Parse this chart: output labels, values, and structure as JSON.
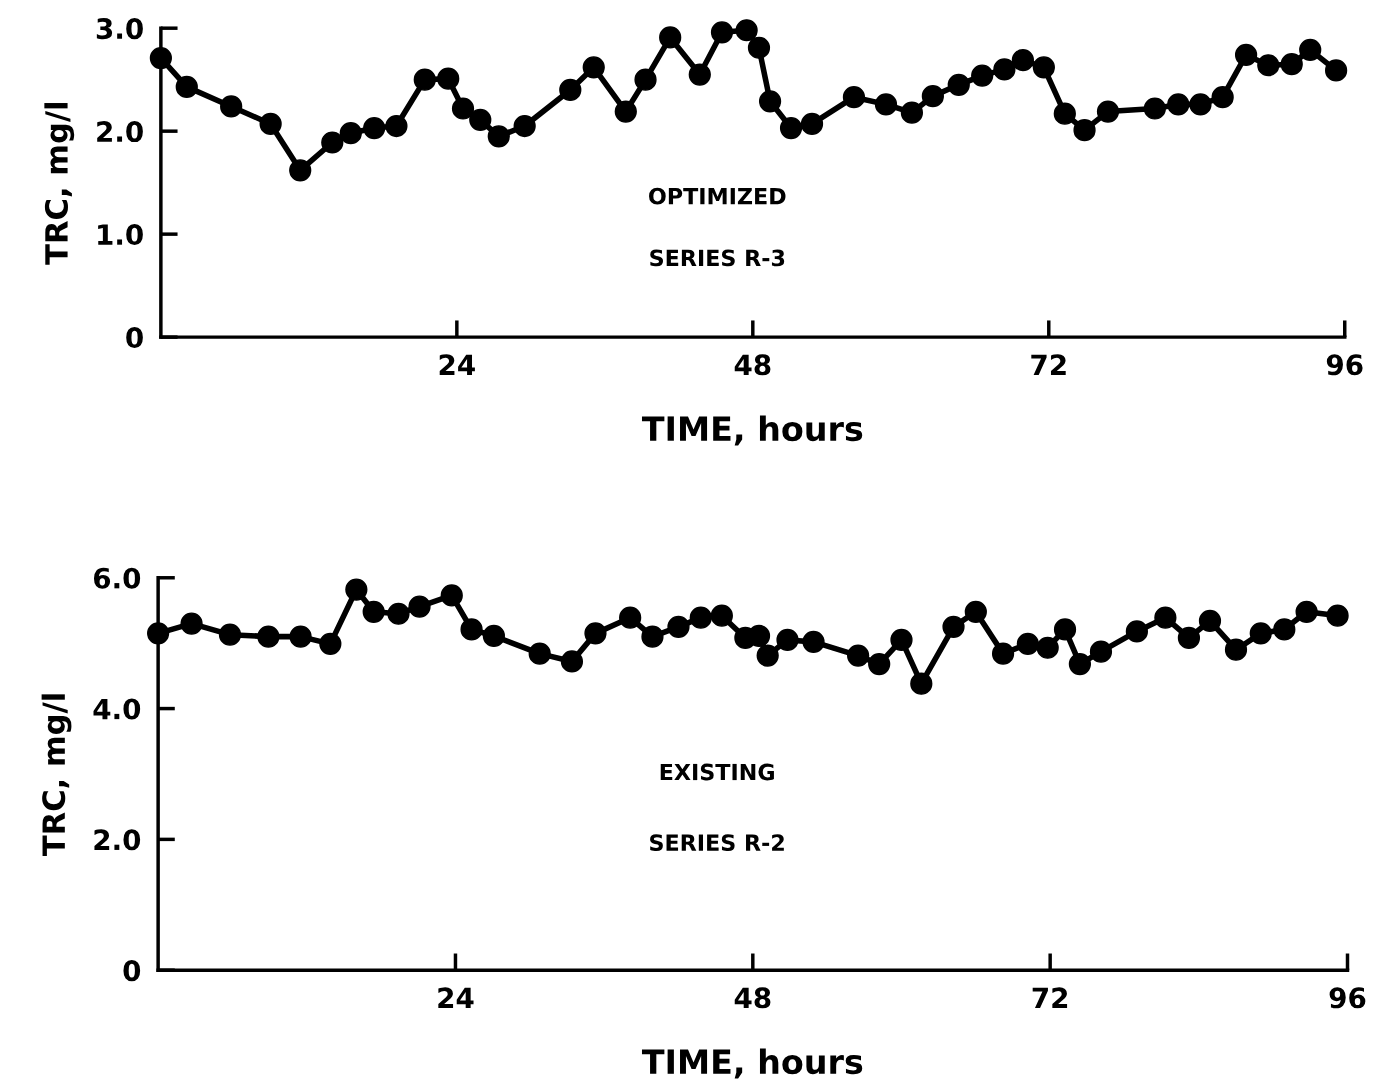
{
  "chart_data": [
    {
      "type": "line",
      "xlabel": "TIME, hours",
      "ylabel": "TRC, mg/l",
      "annotations": [
        "OPTIMIZED",
        "SERIES R-3"
      ],
      "marker": "circle",
      "line_style": "solid",
      "grid": false,
      "legend": false,
      "xlim": [
        0,
        96
      ],
      "ylim": [
        0,
        3
      ],
      "xticks": [
        24,
        48,
        72,
        96
      ],
      "yticks": [
        {
          "value": 0,
          "label": "0"
        },
        {
          "value": 1,
          "label": "1.0"
        },
        {
          "value": 2,
          "label": "2.0"
        },
        {
          "value": 3,
          "label": "3.0"
        }
      ],
      "series": [
        {
          "color": "#000000",
          "x": [
            0,
            2.1,
            5.7,
            8.9,
            11.3,
            13.9,
            15.4,
            17.3,
            19.1,
            21.4,
            23.3,
            24.5,
            25.9,
            27.4,
            29.5,
            33.2,
            35.1,
            37.7,
            39.3,
            41.3,
            43.7,
            45.5,
            47.5,
            48.5,
            49.4,
            51.1,
            52.8,
            56.2,
            58.8,
            60.9,
            62.6,
            64.7,
            66.6,
            68.4,
            69.9,
            71.6,
            73.3,
            74.9,
            76.8,
            80.6,
            82.5,
            84.3,
            86.1,
            88.0,
            89.8,
            91.7,
            93.2,
            95.3
          ],
          "values": [
            2.71,
            2.43,
            2.24,
            2.07,
            1.62,
            1.89,
            1.98,
            2.03,
            2.05,
            2.5,
            2.51,
            2.22,
            2.11,
            1.95,
            2.05,
            2.4,
            2.62,
            2.19,
            2.5,
            2.91,
            2.55,
            2.96,
            2.98,
            2.81,
            2.29,
            2.03,
            2.07,
            2.33,
            2.26,
            2.18,
            2.34,
            2.45,
            2.54,
            2.6,
            2.69,
            2.62,
            2.17,
            2.01,
            2.19,
            2.22,
            2.26,
            2.26,
            2.33,
            2.74,
            2.64,
            2.65,
            2.79,
            2.59
          ]
        }
      ]
    },
    {
      "type": "line",
      "xlabel": "TIME, hours",
      "ylabel": "TRC, mg/l",
      "annotations": [
        "EXISTING",
        "SERIES R-2"
      ],
      "marker": "circle",
      "line_style": "solid",
      "grid": false,
      "legend": false,
      "xlim": [
        0,
        96
      ],
      "ylim": [
        0,
        6
      ],
      "xticks": [
        24,
        48,
        72,
        96
      ],
      "yticks": [
        {
          "value": 0,
          "label": "0"
        },
        {
          "value": 2,
          "label": "2.0"
        },
        {
          "value": 4,
          "label": "4.0"
        },
        {
          "value": 6,
          "label": "6.0"
        }
      ],
      "series": [
        {
          "color": "#000000",
          "x": [
            0,
            2.7,
            5.8,
            8.9,
            11.5,
            13.9,
            16.0,
            17.4,
            19.4,
            21.1,
            23.7,
            25.3,
            27.1,
            30.8,
            33.4,
            35.3,
            38.1,
            39.9,
            42.0,
            43.8,
            45.5,
            47.4,
            48.5,
            49.2,
            50.8,
            52.9,
            56.5,
            58.2,
            60.0,
            61.6,
            64.2,
            66.0,
            68.2,
            70.2,
            71.8,
            73.2,
            74.4,
            76.1,
            79.0,
            81.3,
            83.2,
            84.9,
            87.0,
            89.0,
            90.9,
            92.7,
            95.2
          ],
          "values": [
            5.15,
            5.3,
            5.13,
            5.1,
            5.1,
            4.99,
            5.82,
            5.48,
            5.45,
            5.56,
            5.73,
            5.21,
            5.11,
            4.84,
            4.72,
            5.15,
            5.39,
            5.1,
            5.25,
            5.39,
            5.42,
            5.08,
            5.11,
            4.81,
            5.05,
            5.02,
            4.81,
            4.68,
            5.05,
            4.38,
            5.25,
            5.48,
            4.84,
            4.99,
            4.93,
            5.21,
            4.68,
            4.87,
            5.18,
            5.39,
            5.08,
            5.34,
            4.9,
            5.15,
            5.21,
            5.48,
            5.42
          ]
        }
      ]
    }
  ]
}
